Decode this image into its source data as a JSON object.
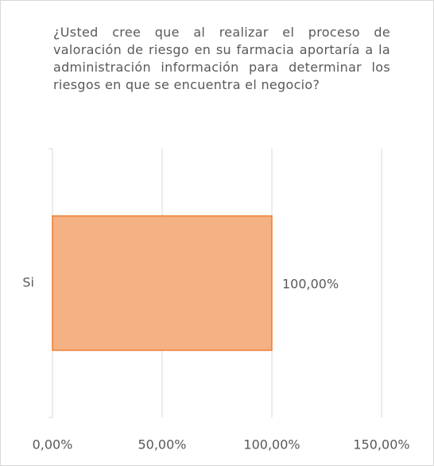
{
  "chart_data": {
    "type": "bar",
    "orientation": "horizontal",
    "title": "¿Usted cree que al realizar el proceso de valoración de riesgo en su farmacia aportaría a la administración información para determinar los riesgos en que se encuentra el negocio?",
    "categories": [
      "Si"
    ],
    "values": [
      100
    ],
    "value_labels": [
      "100,00%"
    ],
    "color": "#f4b183",
    "edge_color": "#ed7d31",
    "xlim": [
      0,
      150
    ],
    "xticks": [
      {
        "value": 0,
        "label": "0,00%"
      },
      {
        "value": 50,
        "label": "50,00%"
      },
      {
        "value": 100,
        "label": "100,00%"
      },
      {
        "value": 150,
        "label": "150,00%"
      }
    ],
    "grid": true
  }
}
